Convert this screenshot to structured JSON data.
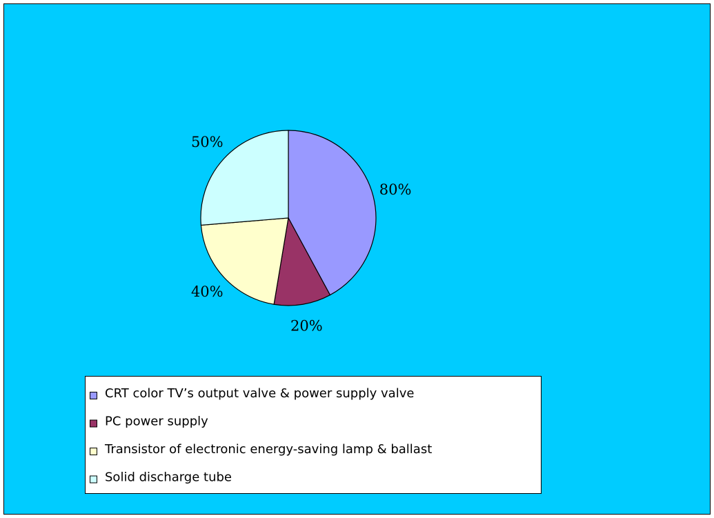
{
  "chart_data": {
    "type": "pie",
    "categories": [
      "CRT color TV’s output valve & power supply valve",
      "PC power supply",
      "Transistor of electronic energy-saving lamp & ballast",
      "Solid discharge tube"
    ],
    "values": [
      80,
      20,
      40,
      50
    ],
    "value_labels": [
      "80%",
      "20%",
      "40%",
      "50%"
    ],
    "colors": [
      "#9999ff",
      "#993366",
      "#ffffcc",
      "#ccffff"
    ]
  }
}
